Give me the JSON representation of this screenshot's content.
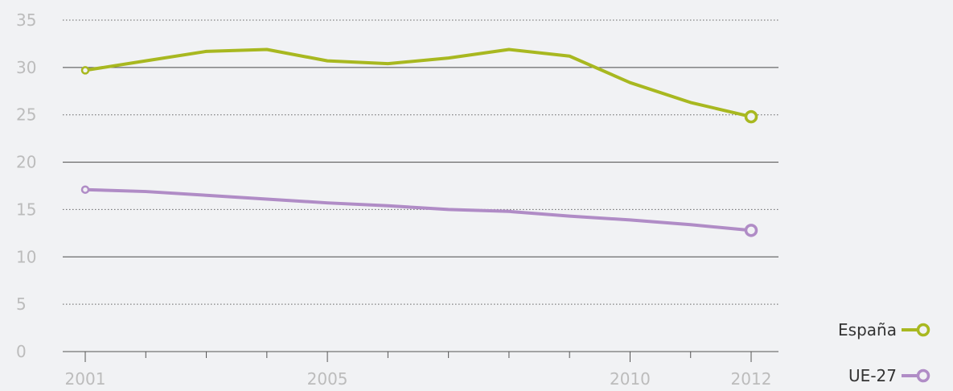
{
  "chart_data": {
    "type": "line",
    "title": "",
    "xlabel": "",
    "ylabel": "",
    "xlim": [
      2001,
      2012
    ],
    "ylim": [
      0,
      35
    ],
    "y_ticks": [
      0,
      5,
      10,
      15,
      20,
      25,
      30,
      35
    ],
    "x_tick_labels": [
      "2001",
      "2005",
      "2010",
      "2012"
    ],
    "x": [
      2001,
      2002,
      2003,
      2004,
      2005,
      2006,
      2007,
      2008,
      2009,
      2010,
      2011,
      2012
    ],
    "grid": "horizontal: solid at multiples of 10, dotted at odd multiples of 5",
    "legend_position": "bottom-right",
    "series": [
      {
        "name": "España",
        "color": "#a8b820",
        "values": [
          29.7,
          30.7,
          31.7,
          31.9,
          30.7,
          30.4,
          31.0,
          31.9,
          31.2,
          28.4,
          26.3,
          24.8
        ]
      },
      {
        "name": "UE-27",
        "color": "#b08cc6",
        "values": [
          17.1,
          16.9,
          16.5,
          16.1,
          15.7,
          15.4,
          15.0,
          14.8,
          14.3,
          13.9,
          13.4,
          12.8
        ]
      }
    ]
  }
}
